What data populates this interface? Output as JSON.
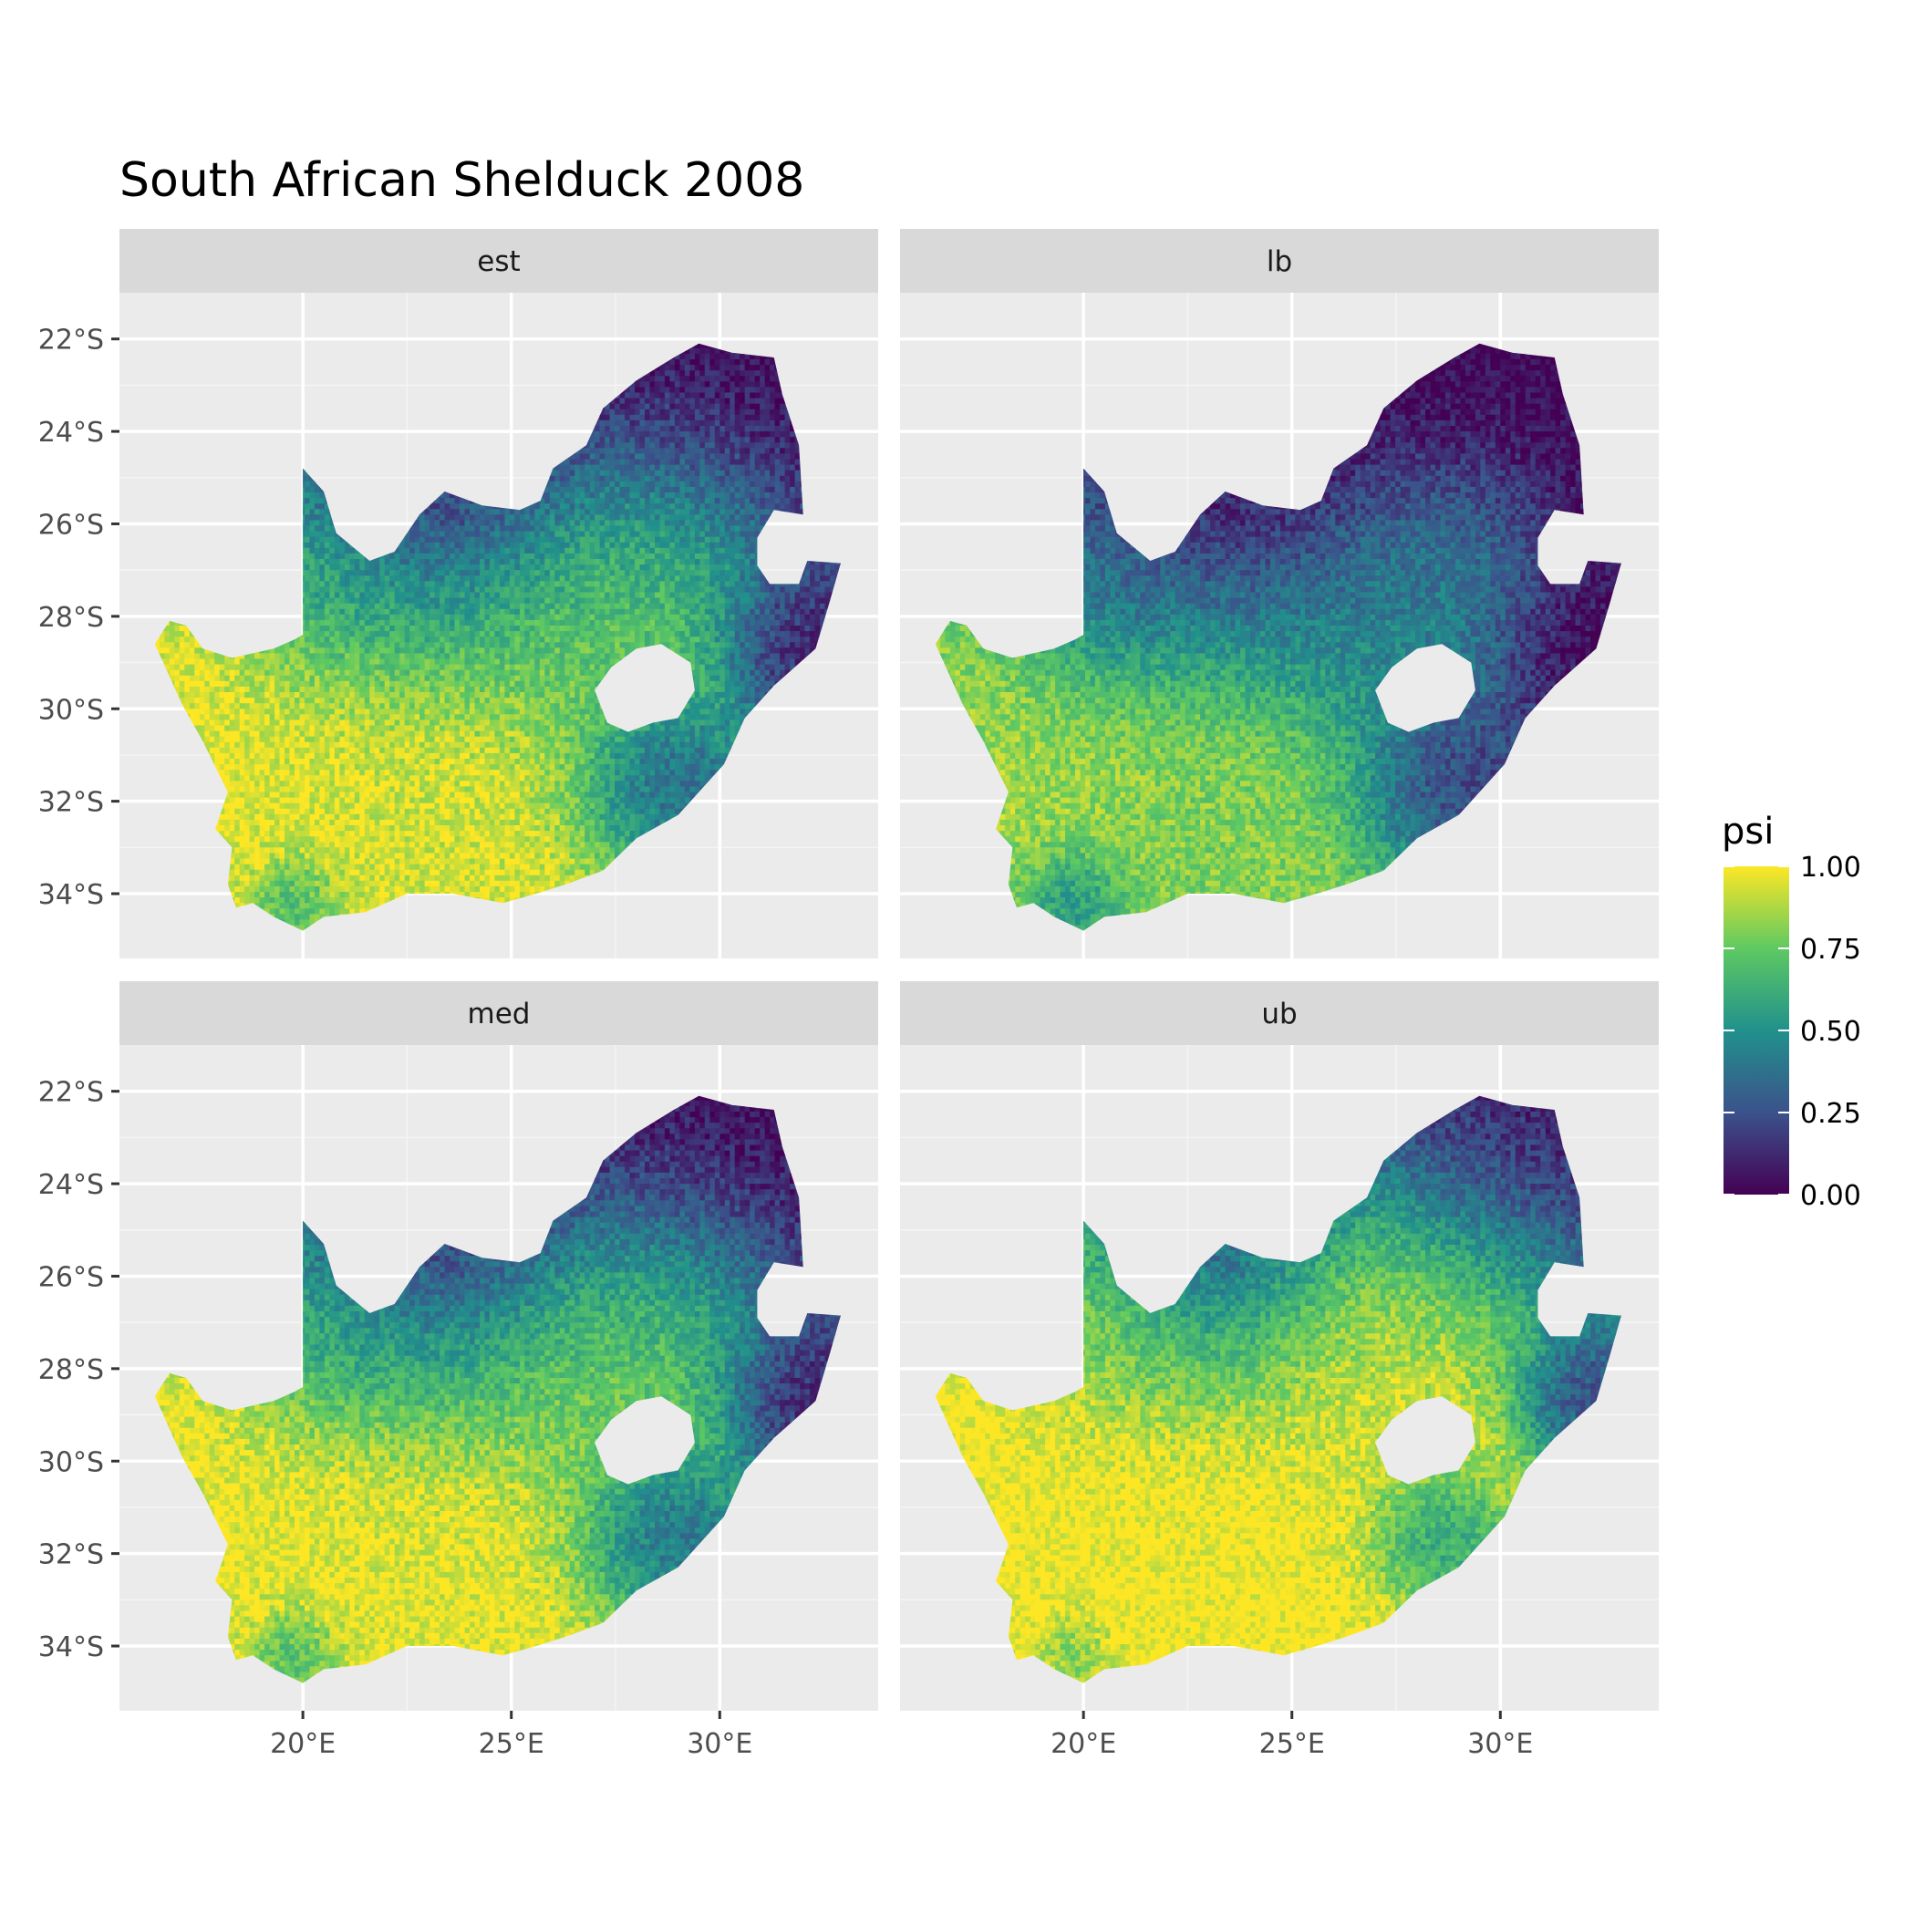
{
  "title": "South African Shelduck 2008",
  "chart_data": {
    "type": "heatmap",
    "title": "South African Shelduck 2008",
    "xlabel": "",
    "ylabel": "",
    "facets": [
      "est",
      "lb",
      "med",
      "ub"
    ],
    "x_ticks": [
      "20°E",
      "25°E",
      "30°E"
    ],
    "x_tick_values": [
      20,
      25,
      30
    ],
    "y_ticks": [
      "22°S",
      "24°S",
      "26°S",
      "28°S",
      "30°S",
      "32°S",
      "34°S"
    ],
    "y_tick_values": [
      -22,
      -24,
      -26,
      -28,
      -30,
      -32,
      -34
    ],
    "xlim": [
      15.6,
      33.8
    ],
    "ylim": [
      -35.4,
      -21.0
    ],
    "grid": true,
    "legend": {
      "title": "psi",
      "placement": "right",
      "ticks": [
        "1.00",
        "0.75",
        "0.50",
        "0.25",
        "0.00"
      ],
      "tick_values": [
        1.0,
        0.75,
        0.5,
        0.25,
        0.0
      ],
      "colors": [
        "#440154",
        "#3b528b",
        "#21918c",
        "#5ec962",
        "#fde725"
      ]
    },
    "region_outline_lonlat": [
      [
        16.45,
        -28.6
      ],
      [
        16.8,
        -28.1
      ],
      [
        17.2,
        -28.2
      ],
      [
        17.6,
        -28.7
      ],
      [
        18.3,
        -28.9
      ],
      [
        19.3,
        -28.7
      ],
      [
        19.8,
        -28.5
      ],
      [
        20.0,
        -28.4
      ],
      [
        20.0,
        -24.8
      ],
      [
        20.5,
        -25.3
      ],
      [
        20.8,
        -26.2
      ],
      [
        21.6,
        -26.8
      ],
      [
        22.2,
        -26.6
      ],
      [
        22.8,
        -25.8
      ],
      [
        23.4,
        -25.3
      ],
      [
        24.3,
        -25.6
      ],
      [
        25.2,
        -25.7
      ],
      [
        25.7,
        -25.5
      ],
      [
        26.0,
        -24.8
      ],
      [
        26.8,
        -24.3
      ],
      [
        27.2,
        -23.5
      ],
      [
        28.0,
        -22.9
      ],
      [
        28.9,
        -22.4
      ],
      [
        29.5,
        -22.1
      ],
      [
        30.3,
        -22.3
      ],
      [
        31.3,
        -22.4
      ],
      [
        31.5,
        -23.2
      ],
      [
        31.9,
        -24.3
      ],
      [
        32.0,
        -25.8
      ],
      [
        31.3,
        -25.7
      ],
      [
        30.9,
        -26.3
      ],
      [
        30.9,
        -26.9
      ],
      [
        31.2,
        -27.3
      ],
      [
        31.9,
        -27.3
      ],
      [
        32.1,
        -26.8
      ],
      [
        32.9,
        -26.85
      ],
      [
        32.6,
        -27.8
      ],
      [
        32.3,
        -28.7
      ],
      [
        31.3,
        -29.5
      ],
      [
        30.6,
        -30.2
      ],
      [
        30.1,
        -31.2
      ],
      [
        29.0,
        -32.3
      ],
      [
        28.0,
        -32.8
      ],
      [
        27.2,
        -33.5
      ],
      [
        26.3,
        -33.8
      ],
      [
        25.6,
        -34.0
      ],
      [
        24.8,
        -34.2
      ],
      [
        23.6,
        -34.0
      ],
      [
        22.5,
        -34.0
      ],
      [
        21.5,
        -34.4
      ],
      [
        20.5,
        -34.5
      ],
      [
        20.0,
        -34.8
      ],
      [
        19.3,
        -34.5
      ],
      [
        18.8,
        -34.2
      ],
      [
        18.4,
        -34.3
      ],
      [
        18.2,
        -33.8
      ],
      [
        18.3,
        -33.0
      ],
      [
        17.9,
        -32.6
      ],
      [
        18.2,
        -31.8
      ],
      [
        17.6,
        -30.7
      ],
      [
        17.1,
        -29.9
      ],
      [
        16.45,
        -28.6
      ]
    ],
    "lesotho_outline_lonlat": [
      [
        27.0,
        -29.6
      ],
      [
        27.4,
        -29.1
      ],
      [
        28.0,
        -28.7
      ],
      [
        28.6,
        -28.6
      ],
      [
        29.3,
        -29.0
      ],
      [
        29.4,
        -29.6
      ],
      [
        29.0,
        -30.2
      ],
      [
        28.4,
        -30.3
      ],
      [
        27.8,
        -30.5
      ],
      [
        27.3,
        -30.3
      ],
      [
        27.0,
        -29.6
      ]
    ],
    "psi_hotspots": {
      "est": [
        {
          "lon": 18.8,
          "lat": -31.4,
          "psi": 0.98,
          "r": 3.6
        },
        {
          "lon": 21.8,
          "lat": -32.4,
          "psi": 0.97,
          "r": 3.4
        },
        {
          "lon": 25.0,
          "lat": -32.4,
          "psi": 0.93,
          "r": 2.6
        },
        {
          "lon": 22.5,
          "lat": -33.6,
          "psi": 0.9,
          "r": 1.6
        },
        {
          "lon": 28.8,
          "lat": -26.8,
          "psi": 0.8,
          "r": 1.8
        },
        {
          "lon": 26.2,
          "lat": -28.2,
          "psi": 0.75,
          "r": 1.6
        },
        {
          "lon": 20.7,
          "lat": -27.4,
          "psi": 0.55,
          "r": 1.2
        },
        {
          "lon": 19.8,
          "lat": -34.2,
          "psi": 0.25,
          "r": 0.7
        },
        {
          "lon": 23.0,
          "lat": -25.6,
          "psi": 0.02,
          "r": 2.6
        },
        {
          "lon": 30.0,
          "lat": -24.0,
          "psi": 0.02,
          "r": 2.2
        },
        {
          "lon": 28.2,
          "lat": -31.6,
          "psi": 0.08,
          "r": 1.2
        },
        {
          "lon": 31.6,
          "lat": -28.4,
          "psi": 0.05,
          "r": 1.0
        }
      ],
      "lb": [
        {
          "lon": 18.8,
          "lat": -31.4,
          "psi": 0.85,
          "r": 3.2
        },
        {
          "lon": 21.8,
          "lat": -32.4,
          "psi": 0.9,
          "r": 3.0
        },
        {
          "lon": 25.0,
          "lat": -32.4,
          "psi": 0.8,
          "r": 2.4
        },
        {
          "lon": 22.5,
          "lat": -33.6,
          "psi": 0.7,
          "r": 1.5
        },
        {
          "lon": 28.8,
          "lat": -26.8,
          "psi": 0.55,
          "r": 1.6
        },
        {
          "lon": 26.2,
          "lat": -28.2,
          "psi": 0.45,
          "r": 1.5
        },
        {
          "lon": 20.7,
          "lat": -27.4,
          "psi": 0.3,
          "r": 1.2
        },
        {
          "lon": 19.8,
          "lat": -34.2,
          "psi": 0.1,
          "r": 0.8
        },
        {
          "lon": 23.0,
          "lat": -25.6,
          "psi": 0.0,
          "r": 2.8
        },
        {
          "lon": 30.0,
          "lat": -24.0,
          "psi": 0.0,
          "r": 2.4
        },
        {
          "lon": 28.2,
          "lat": -31.6,
          "psi": 0.03,
          "r": 1.3
        },
        {
          "lon": 31.6,
          "lat": -28.4,
          "psi": 0.02,
          "r": 1.1
        }
      ],
      "med": [
        {
          "lon": 18.8,
          "lat": -31.4,
          "psi": 0.99,
          "r": 3.6
        },
        {
          "lon": 21.8,
          "lat": -32.4,
          "psi": 0.99,
          "r": 3.5
        },
        {
          "lon": 25.0,
          "lat": -32.4,
          "psi": 0.96,
          "r": 2.7
        },
        {
          "lon": 22.5,
          "lat": -33.6,
          "psi": 0.94,
          "r": 1.6
        },
        {
          "lon": 28.8,
          "lat": -26.8,
          "psi": 0.82,
          "r": 1.8
        },
        {
          "lon": 26.2,
          "lat": -28.2,
          "psi": 0.78,
          "r": 1.6
        },
        {
          "lon": 20.7,
          "lat": -27.4,
          "psi": 0.55,
          "r": 1.2
        },
        {
          "lon": 19.8,
          "lat": -34.2,
          "psi": 0.25,
          "r": 0.7
        },
        {
          "lon": 23.0,
          "lat": -25.6,
          "psi": 0.02,
          "r": 2.6
        },
        {
          "lon": 30.0,
          "lat": -24.0,
          "psi": 0.02,
          "r": 2.2
        },
        {
          "lon": 28.2,
          "lat": -31.6,
          "psi": 0.08,
          "r": 1.2
        },
        {
          "lon": 31.6,
          "lat": -28.4,
          "psi": 0.05,
          "r": 1.0
        }
      ],
      "ub": [
        {
          "lon": 18.8,
          "lat": -31.4,
          "psi": 1.0,
          "r": 3.8
        },
        {
          "lon": 21.8,
          "lat": -32.4,
          "psi": 1.0,
          "r": 3.8
        },
        {
          "lon": 25.0,
          "lat": -32.4,
          "psi": 1.0,
          "r": 3.0
        },
        {
          "lon": 22.5,
          "lat": -33.6,
          "psi": 1.0,
          "r": 1.8
        },
        {
          "lon": 28.8,
          "lat": -26.8,
          "psi": 0.95,
          "r": 2.0
        },
        {
          "lon": 26.2,
          "lat": -28.2,
          "psi": 0.92,
          "r": 1.8
        },
        {
          "lon": 20.7,
          "lat": -27.4,
          "psi": 0.8,
          "r": 1.3
        },
        {
          "lon": 19.8,
          "lat": -34.2,
          "psi": 0.45,
          "r": 0.6
        },
        {
          "lon": 23.0,
          "lat": -25.6,
          "psi": 0.08,
          "r": 2.2
        },
        {
          "lon": 30.0,
          "lat": -24.0,
          "psi": 0.05,
          "r": 2.0
        },
        {
          "lon": 28.2,
          "lat": -31.6,
          "psi": 0.3,
          "r": 1.0
        },
        {
          "lon": 31.6,
          "lat": -28.4,
          "psi": 0.12,
          "r": 0.9
        }
      ]
    }
  }
}
